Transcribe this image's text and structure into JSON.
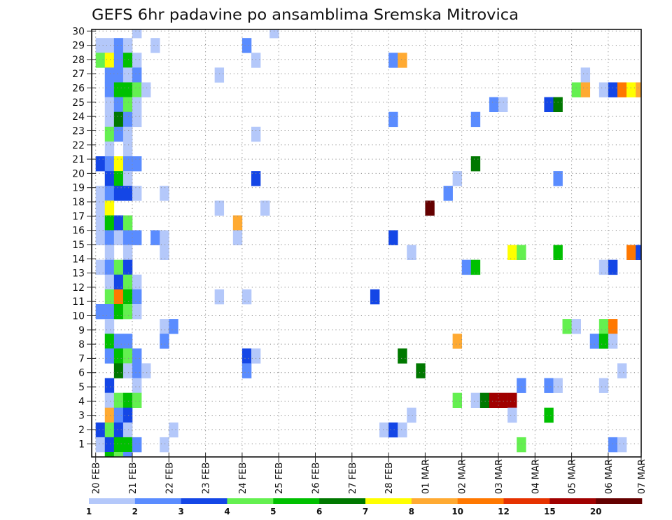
{
  "chart_data": {
    "type": "heatmap",
    "title": "GEFS 6hr padavine po ansamblima Sremska Mitrovica",
    "y_ticks": [
      "1",
      "2",
      "3",
      "4",
      "5",
      "6",
      "7",
      "8",
      "9",
      "10",
      "11",
      "12",
      "13",
      "14",
      "15",
      "16",
      "17",
      "18",
      "19",
      "20",
      "21",
      "22",
      "23",
      "24",
      "25",
      "26",
      "27",
      "28",
      "29",
      "30"
    ],
    "x_ticks": [
      "20 FEB",
      "21 FEB",
      "22 FEB",
      "23 FEB",
      "24 FEB",
      "25 FEB",
      "26 FEB",
      "27 FEB",
      "28 FEB",
      "01 MAR",
      "02 MAR",
      "03 MAR",
      "04 MAR",
      "05 MAR",
      "06 MAR",
      "07 MAR"
    ],
    "colorbar": {
      "labels": [
        "1",
        "2",
        "3",
        "4",
        "5",
        "6",
        "7",
        "8",
        "10",
        "12",
        "15",
        "20"
      ],
      "colors": [
        "#b4c8fa",
        "#5a8cff",
        "#1446e6",
        "#64f050",
        "#00c000",
        "#007800",
        "#ffff00",
        "#ffaa32",
        "#ff7800",
        "#e63200",
        "#a00000",
        "#640000"
      ]
    },
    "rows": [
      {
        "row": 29,
        "cells": [
          [
            4,
            0
          ],
          [
            19,
            0
          ]
        ]
      },
      {
        "row": 28,
        "cells": [
          [
            0,
            0
          ],
          [
            1,
            0
          ],
          [
            2,
            1
          ],
          [
            3,
            0
          ],
          [
            6,
            0
          ],
          [
            16,
            1
          ]
        ]
      },
      {
        "row": 27,
        "cells": [
          [
            0,
            3
          ],
          [
            1,
            6
          ],
          [
            2,
            1
          ],
          [
            3,
            4
          ],
          [
            4,
            0
          ],
          [
            17,
            0
          ],
          [
            32,
            1
          ],
          [
            33,
            7
          ]
        ]
      },
      {
        "row": 26,
        "cells": [
          [
            1,
            1
          ],
          [
            2,
            1
          ],
          [
            3,
            0
          ],
          [
            4,
            1
          ],
          [
            13,
            0
          ],
          [
            53,
            0
          ]
        ]
      },
      {
        "row": 25,
        "cells": [
          [
            1,
            1
          ],
          [
            2,
            4
          ],
          [
            3,
            4
          ],
          [
            4,
            3
          ],
          [
            5,
            0
          ],
          [
            52,
            3
          ],
          [
            53,
            7
          ],
          [
            55,
            0
          ],
          [
            56,
            2
          ],
          [
            57,
            8
          ],
          [
            58,
            6
          ],
          [
            59,
            7
          ]
        ]
      },
      {
        "row": 24,
        "cells": [
          [
            1,
            0
          ],
          [
            2,
            1
          ],
          [
            3,
            3
          ],
          [
            4,
            0
          ],
          [
            43,
            1
          ],
          [
            44,
            0
          ],
          [
            49,
            2
          ],
          [
            50,
            5
          ]
        ]
      },
      {
        "row": 23,
        "cells": [
          [
            1,
            0
          ],
          [
            2,
            5
          ],
          [
            3,
            1
          ],
          [
            4,
            0
          ],
          [
            32,
            1
          ],
          [
            41,
            1
          ]
        ]
      },
      {
        "row": 22,
        "cells": [
          [
            1,
            3
          ],
          [
            2,
            1
          ],
          [
            3,
            0
          ],
          [
            17,
            0
          ]
        ]
      },
      {
        "row": 21,
        "cells": [
          [
            1,
            0
          ],
          [
            3,
            0
          ]
        ]
      },
      {
        "row": 20,
        "cells": [
          [
            0,
            2
          ],
          [
            1,
            1
          ],
          [
            2,
            6
          ],
          [
            3,
            1
          ],
          [
            4,
            1
          ],
          [
            41,
            5
          ]
        ]
      },
      {
        "row": 19,
        "cells": [
          [
            1,
            2
          ],
          [
            2,
            4
          ],
          [
            3,
            0
          ],
          [
            17,
            2
          ],
          [
            39,
            0
          ],
          [
            50,
            1
          ]
        ]
      },
      {
        "row": 18,
        "cells": [
          [
            0,
            0
          ],
          [
            1,
            1
          ],
          [
            2,
            2
          ],
          [
            3,
            2
          ],
          [
            4,
            0
          ],
          [
            7,
            0
          ],
          [
            38,
            1
          ]
        ]
      },
      {
        "row": 17,
        "cells": [
          [
            0,
            0
          ],
          [
            1,
            6
          ],
          [
            13,
            0
          ],
          [
            18,
            0
          ],
          [
            36,
            11
          ]
        ]
      },
      {
        "row": 16,
        "cells": [
          [
            0,
            0
          ],
          [
            1,
            4
          ],
          [
            2,
            2
          ],
          [
            3,
            3
          ],
          [
            15,
            7
          ]
        ]
      },
      {
        "row": 15,
        "cells": [
          [
            0,
            0
          ],
          [
            1,
            1
          ],
          [
            2,
            0
          ],
          [
            3,
            1
          ],
          [
            4,
            1
          ],
          [
            6,
            1
          ],
          [
            7,
            0
          ],
          [
            15,
            0
          ],
          [
            32,
            2
          ]
        ]
      },
      {
        "row": 14,
        "cells": [
          [
            1,
            0
          ],
          [
            3,
            0
          ],
          [
            7,
            0
          ],
          [
            34,
            0
          ],
          [
            45,
            6
          ],
          [
            46,
            3
          ],
          [
            50,
            4
          ],
          [
            58,
            8
          ],
          [
            59,
            2
          ]
        ]
      },
      {
        "row": 13,
        "cells": [
          [
            0,
            0
          ],
          [
            1,
            1
          ],
          [
            2,
            3
          ],
          [
            3,
            2
          ],
          [
            40,
            1
          ],
          [
            41,
            4
          ],
          [
            55,
            0
          ],
          [
            56,
            2
          ]
        ]
      },
      {
        "row": 12,
        "cells": [
          [
            1,
            0
          ],
          [
            2,
            2
          ],
          [
            3,
            3
          ],
          [
            4,
            0
          ]
        ]
      },
      {
        "row": 11,
        "cells": [
          [
            1,
            3
          ],
          [
            2,
            8
          ],
          [
            3,
            4
          ],
          [
            4,
            1
          ],
          [
            13,
            0
          ],
          [
            16,
            0
          ],
          [
            30,
            2
          ]
        ]
      },
      {
        "row": 10,
        "cells": [
          [
            0,
            1
          ],
          [
            1,
            1
          ],
          [
            2,
            4
          ],
          [
            3,
            3
          ],
          [
            4,
            0
          ]
        ]
      },
      {
        "row": 9,
        "cells": [
          [
            1,
            0
          ],
          [
            7,
            0
          ],
          [
            8,
            1
          ],
          [
            51,
            3
          ],
          [
            52,
            0
          ],
          [
            55,
            3
          ],
          [
            56,
            8
          ]
        ]
      },
      {
        "row": 8,
        "cells": [
          [
            1,
            4
          ],
          [
            2,
            1
          ],
          [
            3,
            1
          ],
          [
            7,
            1
          ],
          [
            39,
            7
          ],
          [
            54,
            1
          ],
          [
            55,
            4
          ],
          [
            56,
            0
          ]
        ]
      },
      {
        "row": 7,
        "cells": [
          [
            1,
            1
          ],
          [
            2,
            4
          ],
          [
            3,
            3
          ],
          [
            4,
            1
          ],
          [
            16,
            2
          ],
          [
            17,
            0
          ],
          [
            33,
            5
          ]
        ]
      },
      {
        "row": 6,
        "cells": [
          [
            2,
            5
          ],
          [
            3,
            0
          ],
          [
            4,
            1
          ],
          [
            5,
            0
          ],
          [
            16,
            1
          ],
          [
            35,
            5
          ],
          [
            57,
            0
          ]
        ]
      },
      {
        "row": 5,
        "cells": [
          [
            1,
            2
          ],
          [
            4,
            0
          ],
          [
            46,
            1
          ],
          [
            49,
            1
          ],
          [
            50,
            0
          ],
          [
            55,
            0
          ]
        ]
      },
      {
        "row": 4,
        "cells": [
          [
            1,
            0
          ],
          [
            2,
            3
          ],
          [
            3,
            4
          ],
          [
            4,
            3
          ],
          [
            39,
            3
          ],
          [
            41,
            0
          ],
          [
            42,
            5
          ],
          [
            43,
            10
          ],
          [
            44,
            10
          ],
          [
            45,
            10
          ]
        ]
      },
      {
        "row": 3,
        "cells": [
          [
            1,
            7
          ],
          [
            2,
            1
          ],
          [
            3,
            2
          ],
          [
            34,
            0
          ],
          [
            45,
            0
          ],
          [
            49,
            4
          ]
        ]
      },
      {
        "row": 2,
        "cells": [
          [
            0,
            2
          ],
          [
            1,
            3
          ],
          [
            2,
            2
          ],
          [
            3,
            0
          ],
          [
            8,
            0
          ],
          [
            31,
            0
          ],
          [
            32,
            2
          ],
          [
            33,
            0
          ]
        ]
      },
      {
        "row": 1,
        "cells": [
          [
            0,
            0
          ],
          [
            1,
            2
          ],
          [
            2,
            4
          ],
          [
            3,
            4
          ],
          [
            4,
            1
          ],
          [
            7,
            0
          ],
          [
            46,
            3
          ],
          [
            56,
            1
          ],
          [
            57,
            0
          ]
        ]
      },
      {
        "row": 0,
        "cells": [
          [
            1,
            4
          ],
          [
            2,
            3
          ],
          [
            3,
            1
          ]
        ]
      }
    ]
  }
}
